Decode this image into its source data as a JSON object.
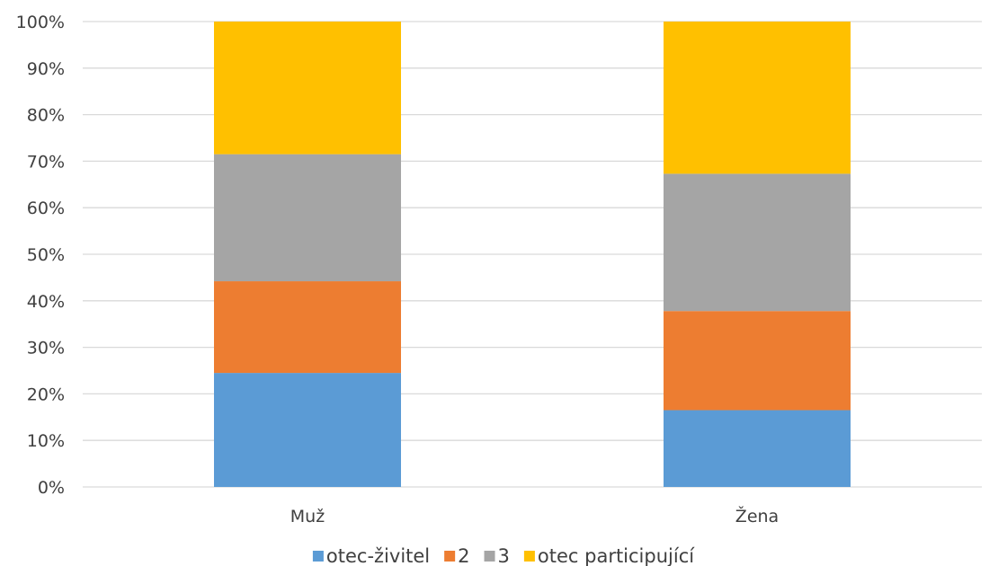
{
  "chart_data": {
    "type": "bar",
    "stacked": true,
    "percent": true,
    "categories": [
      "Muž",
      "Žena"
    ],
    "series": [
      {
        "name": "otec-živitel",
        "values": [
          24.5,
          16.5
        ],
        "color": "#5b9bd5"
      },
      {
        "name": "2",
        "values": [
          19.7,
          21.3
        ],
        "color": "#ed7d31"
      },
      {
        "name": "3",
        "values": [
          27.3,
          29.5
        ],
        "color": "#a5a5a5"
      },
      {
        "name": "otec participující",
        "values": [
          28.5,
          32.7
        ],
        "color": "#ffc000"
      }
    ],
    "ylim": [
      0,
      100
    ],
    "yticks": [
      "0%",
      "10%",
      "20%",
      "30%",
      "40%",
      "50%",
      "60%",
      "70%",
      "80%",
      "90%",
      "100%"
    ],
    "grid": true,
    "legend_position": "bottom"
  }
}
